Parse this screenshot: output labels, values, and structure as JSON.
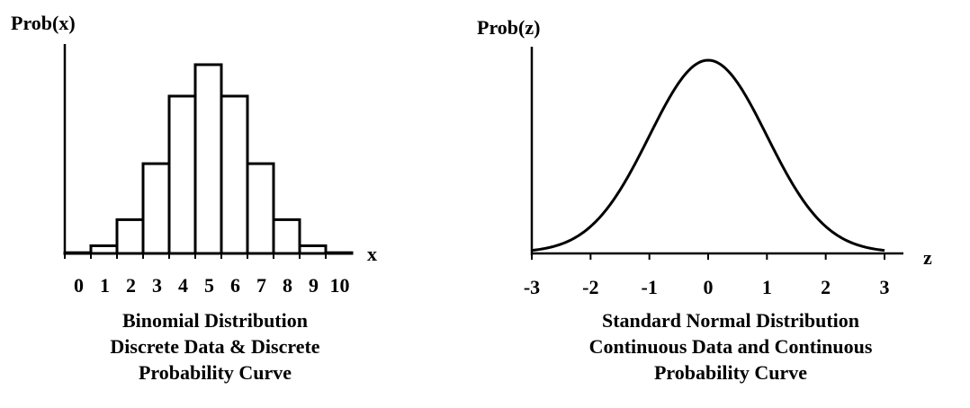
{
  "chart_data": [
    {
      "type": "bar",
      "ylabel": "Prob(x)",
      "xlabel": "x",
      "categories": [
        "0",
        "1",
        "2",
        "3",
        "4",
        "5",
        "6",
        "7",
        "8",
        "9",
        "10"
      ],
      "values": [
        0.001,
        0.01,
        0.044,
        0.117,
        0.205,
        0.246,
        0.205,
        0.117,
        0.044,
        0.01,
        0.001
      ],
      "ylim": [
        0,
        0.26
      ],
      "caption": [
        "Binomial Distribution",
        "Discrete Data & Discrete",
        "Probability Curve"
      ],
      "style": {
        "line_color": "#000000",
        "fill_color": "#ffffff"
      }
    },
    {
      "type": "line",
      "ylabel": "Prob(z)",
      "xlabel": "z",
      "xticks": [
        "-3",
        "-2",
        "-1",
        "0",
        "1",
        "2",
        "3"
      ],
      "xlim": [
        -3,
        3
      ],
      "ylim": [
        0,
        0.41
      ],
      "series": [
        {
          "function": "standard normal density"
        }
      ],
      "caption": [
        "Standard Normal Distribution",
        "Continuous Data and Continuous",
        "Probability Curve"
      ],
      "style": {
        "line_color": "#000000"
      }
    }
  ]
}
